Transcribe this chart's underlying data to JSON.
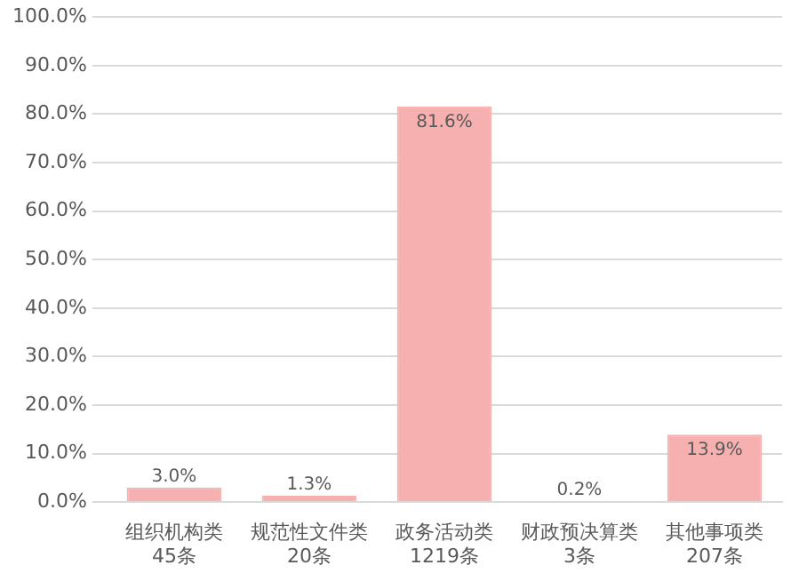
{
  "chart_data": {
    "type": "bar",
    "categories": [
      "组织机构类\n45条",
      "规范性文件类\n20条",
      "政务活动类\n1219条",
      "财政预决算类\n3条",
      "其他事项类\n207条"
    ],
    "values": [
      3.0,
      1.3,
      81.6,
      0.2,
      13.9
    ],
    "value_labels": [
      "3.0%",
      "1.3%",
      "81.6%",
      "0.2%",
      "13.9%"
    ],
    "color": "#f7b0b0",
    "ylim": [
      0,
      100
    ],
    "yticks": [
      {
        "value": 0,
        "label": "0.0%"
      },
      {
        "value": 10,
        "label": "10.0%"
      },
      {
        "value": 20,
        "label": "20.0%"
      },
      {
        "value": 30,
        "label": "30.0%"
      },
      {
        "value": 40,
        "label": "40.0%"
      },
      {
        "value": 50,
        "label": "50.0%"
      },
      {
        "value": 60,
        "label": "60.0%"
      },
      {
        "value": 70,
        "label": "70.0%"
      },
      {
        "value": 80,
        "label": "80.0%"
      },
      {
        "value": 90,
        "label": "90.0%"
      },
      {
        "value": 100,
        "label": "100.0%"
      }
    ],
    "grid": "y",
    "legend": false
  }
}
